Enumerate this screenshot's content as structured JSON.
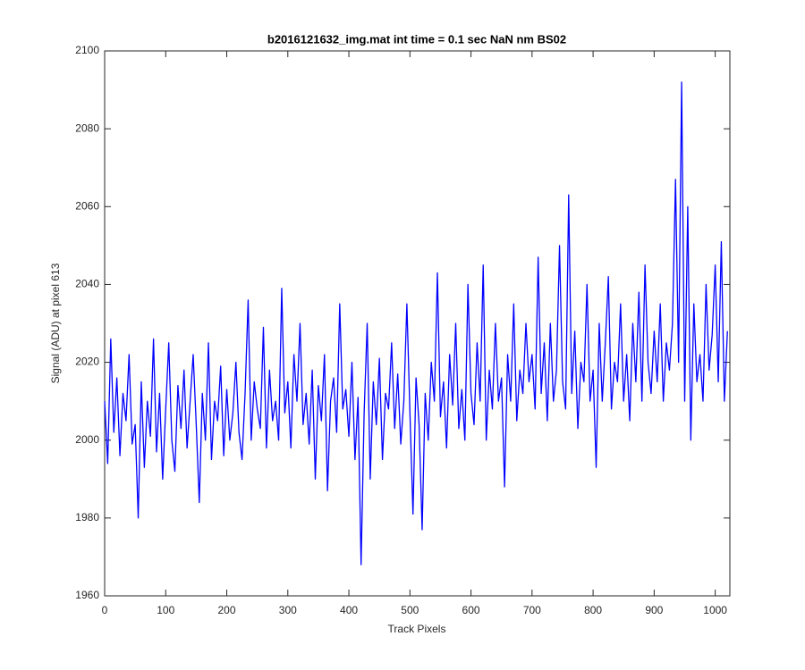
{
  "chart_data": {
    "type": "line",
    "title": "b2016121632_img.mat int time = 0.1 sec  NaN nm BS02",
    "x_label": "Track Pixels",
    "y_label": "Signal (ADU) at pixel 613",
    "xlim": [
      0,
      1024
    ],
    "ylim": [
      1960,
      2100
    ],
    "xticks": [
      0,
      100,
      200,
      300,
      400,
      500,
      600,
      700,
      800,
      900,
      1000
    ],
    "yticks": [
      1960,
      1980,
      2000,
      2020,
      2040,
      2060,
      2080,
      2100
    ],
    "grid": false,
    "x": [
      0,
      5,
      10,
      15,
      20,
      25,
      30,
      35,
      40,
      45,
      50,
      55,
      60,
      65,
      70,
      75,
      80,
      85,
      90,
      95,
      100,
      105,
      110,
      115,
      120,
      125,
      130,
      135,
      140,
      145,
      150,
      155,
      160,
      165,
      170,
      175,
      180,
      185,
      190,
      195,
      200,
      205,
      210,
      215,
      220,
      225,
      230,
      235,
      240,
      245,
      250,
      255,
      260,
      265,
      270,
      275,
      280,
      285,
      290,
      295,
      300,
      305,
      310,
      315,
      320,
      325,
      330,
      335,
      340,
      345,
      350,
      355,
      360,
      365,
      370,
      375,
      380,
      385,
      390,
      395,
      400,
      405,
      410,
      415,
      420,
      425,
      430,
      435,
      440,
      445,
      450,
      455,
      460,
      465,
      470,
      475,
      480,
      485,
      490,
      495,
      500,
      505,
      510,
      515,
      520,
      525,
      530,
      535,
      540,
      545,
      550,
      555,
      560,
      565,
      570,
      575,
      580,
      585,
      590,
      595,
      600,
      605,
      610,
      615,
      620,
      625,
      630,
      635,
      640,
      645,
      650,
      655,
      660,
      665,
      670,
      675,
      680,
      685,
      690,
      695,
      700,
      705,
      710,
      715,
      720,
      725,
      730,
      735,
      740,
      745,
      750,
      755,
      760,
      765,
      770,
      775,
      780,
      785,
      790,
      795,
      800,
      805,
      810,
      815,
      820,
      825,
      830,
      835,
      840,
      845,
      850,
      855,
      860,
      865,
      870,
      875,
      880,
      885,
      890,
      895,
      900,
      905,
      910,
      915,
      920,
      925,
      930,
      935,
      940,
      945,
      950,
      955,
      960,
      965,
      970,
      975,
      980,
      985,
      990,
      995,
      1000,
      1005,
      1010,
      1015,
      1020
    ],
    "series": [
      {
        "color": "#0000ff",
        "values": [
          2010,
          1994,
          2026,
          2002,
          2016,
          1996,
          2012,
          2005,
          2022,
          1999,
          2004,
          1980,
          2015,
          1993,
          2010,
          2001,
          2026,
          1997,
          2012,
          1990,
          2008,
          2025,
          2000,
          1992,
          2014,
          2003,
          2018,
          1998,
          2010,
          2022,
          2004,
          1984,
          2012,
          2000,
          2025,
          1995,
          2010,
          2005,
          2019,
          1996,
          2013,
          2000,
          2007,
          2020,
          2002,
          1995,
          2012,
          2036,
          2000,
          2015,
          2008,
          2003,
          2029,
          1998,
          2018,
          2005,
          2010,
          2000,
          2039,
          2007,
          2015,
          1998,
          2022,
          2010,
          2030,
          2004,
          2012,
          1999,
          2018,
          1990,
          2014,
          2005,
          2022,
          1987,
          2010,
          2016,
          2002,
          2035,
          2008,
          2013,
          2001,
          2020,
          1995,
          2011,
          1968,
          2007,
          2030,
          1990,
          2015,
          2004,
          2021,
          1995,
          2012,
          2008,
          2025,
          2003,
          2017,
          1999,
          2010,
          2035,
          2007,
          1981,
          2016,
          2004,
          1977,
          2012,
          2000,
          2020,
          2010,
          2043,
          2006,
          2015,
          1998,
          2022,
          2009,
          2030,
          2003,
          2013,
          2000,
          2040,
          2012,
          2004,
          2025,
          2010,
          2045,
          2000,
          2018,
          2008,
          2030,
          2010,
          2016,
          1988,
          2022,
          2010,
          2035,
          2005,
          2018,
          2012,
          2030,
          2015,
          2022,
          2008,
          2047,
          2012,
          2025,
          2005,
          2030,
          2010,
          2018,
          2050,
          2015,
          2008,
          2063,
          2012,
          2028,
          2003,
          2020,
          2015,
          2040,
          2010,
          2018,
          1993,
          2030,
          2010,
          2025,
          2042,
          2008,
          2020,
          2015,
          2035,
          2010,
          2022,
          2005,
          2030,
          2015,
          2038,
          2010,
          2045,
          2020,
          2012,
          2028,
          2015,
          2035,
          2010,
          2025,
          2018,
          2030,
          2067,
          2020,
          2092,
          2010,
          2060,
          2000,
          2035,
          2015,
          2022,
          2010,
          2040,
          2018,
          2027,
          2045,
          2015,
          2051,
          2010,
          2028
        ]
      }
    ]
  }
}
